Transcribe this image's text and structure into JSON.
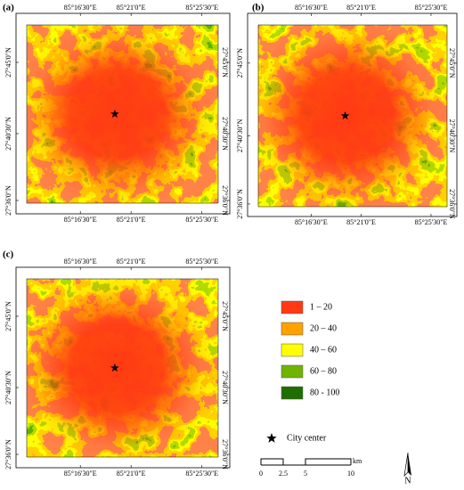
{
  "panels": [
    {
      "label": "(a)"
    },
    {
      "label": "(b)"
    },
    {
      "label": "(c)"
    }
  ],
  "lon_ticks": [
    "85°16'30\"E",
    "85°21'0\"E",
    "85°25'30\"E"
  ],
  "lat_ticks": [
    "27°45'0\"N",
    "27°40'30\"N",
    "27°36'0\"N"
  ],
  "legend": [
    {
      "label": "1 – 20",
      "color": "#ff3a12"
    },
    {
      "label": "20 – 40",
      "color": "#ffa200"
    },
    {
      "label": "40 – 60",
      "color": "#ffff00"
    },
    {
      "label": "60 – 80",
      "color": "#70b300"
    },
    {
      "label": "80 - 100",
      "color": "#1f6f00"
    }
  ],
  "city_center": "City center",
  "scale_bar": {
    "labels": [
      "0",
      "2.5",
      "5",
      "10"
    ],
    "unit": "km"
  },
  "north": "N"
}
